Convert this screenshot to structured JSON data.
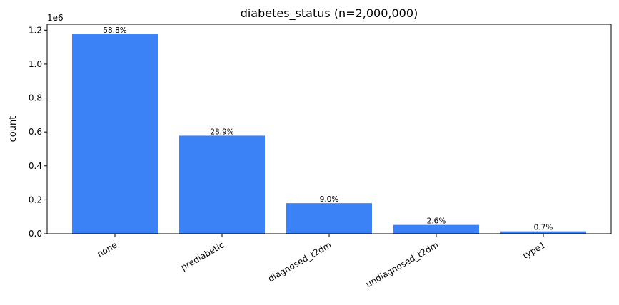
{
  "chart_data": {
    "type": "bar",
    "title": "diabetes_status (n=2,000,000)",
    "xlabel": "",
    "ylabel": "count",
    "y_offset_label": "1e6",
    "ylim": [
      0,
      1.235
    ],
    "yticks": [
      0.0,
      0.2,
      0.4,
      0.6,
      0.8,
      1.0,
      1.2
    ],
    "ytick_labels": [
      "0.0",
      "0.2",
      "0.4",
      "0.6",
      "0.8",
      "1.0",
      "1.2"
    ],
    "categories": [
      "none",
      "prediabetic",
      "diagnosed_t2dm",
      "undiagnosed_t2dm",
      "type1"
    ],
    "values": [
      1176000,
      578000,
      180000,
      52000,
      14000
    ],
    "value_unit_scale": 1000000,
    "data_labels": [
      "58.8%",
      "28.9%",
      "9.0%",
      "2.6%",
      "0.7%"
    ],
    "bar_color": "#3b82f6",
    "grid": false,
    "legend": "none"
  }
}
